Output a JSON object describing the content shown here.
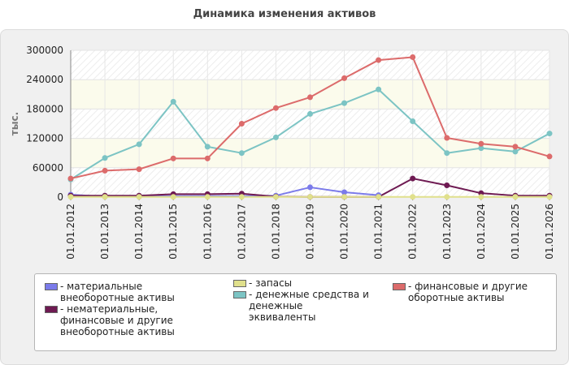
{
  "title": "Динамика изменения активов",
  "chart_data": {
    "type": "line",
    "ylabel": "тыс.",
    "xlabel": "",
    "ylim": [
      0,
      300000
    ],
    "yticks": [
      0,
      60000,
      120000,
      180000,
      240000,
      300000
    ],
    "ytick_labels": [
      "0",
      "60000",
      "120000",
      "180000",
      "240000",
      "300000"
    ],
    "categories": [
      "01.01.2012",
      "01.01.2013",
      "01.01.2014",
      "01.01.2015",
      "01.01.2016",
      "01.01.2017",
      "01.01.2018",
      "01.01.2019",
      "01.01.2020",
      "01.01.2021",
      "01.01.2022",
      "01.01.2023",
      "01.01.2024",
      "01.01.2025",
      "01.01.2026"
    ],
    "legend_position": "bottom",
    "series": [
      {
        "name": "- материальные внеоборотные активы",
        "color": "#7b7bea",
        "values": [
          5000,
          1000,
          1000,
          2000,
          2000,
          2000,
          3000,
          20000,
          10000,
          4000,
          null,
          null,
          null,
          null,
          null
        ]
      },
      {
        "name": "- нематериальные, финансовые и другие внеоборотные активы",
        "color": "#6e1a52",
        "values": [
          3000,
          3000,
          3000,
          6000,
          6000,
          7000,
          1000,
          500,
          500,
          500,
          38000,
          24000,
          8000,
          3000,
          3000
        ]
      },
      {
        "name": "- запасы",
        "color": "#e0e08c",
        "values": [
          500,
          500,
          500,
          500,
          500,
          500,
          500,
          500,
          500,
          500,
          500,
          500,
          500,
          500,
          500
        ]
      },
      {
        "name": "- денежные средства и денежные эквиваленты",
        "color": "#7cc4c4",
        "values": [
          36000,
          80000,
          108000,
          195000,
          103000,
          90000,
          122000,
          170000,
          192000,
          220000,
          155000,
          90000,
          100000,
          93000,
          130000
        ]
      },
      {
        "name": "- финансовые и другие оборотные активы",
        "color": "#dc6b6b",
        "values": [
          38000,
          54000,
          57000,
          79000,
          79000,
          150000,
          182000,
          204000,
          243000,
          280000,
          286000,
          121000,
          109000,
          103000,
          83000
        ]
      }
    ]
  }
}
